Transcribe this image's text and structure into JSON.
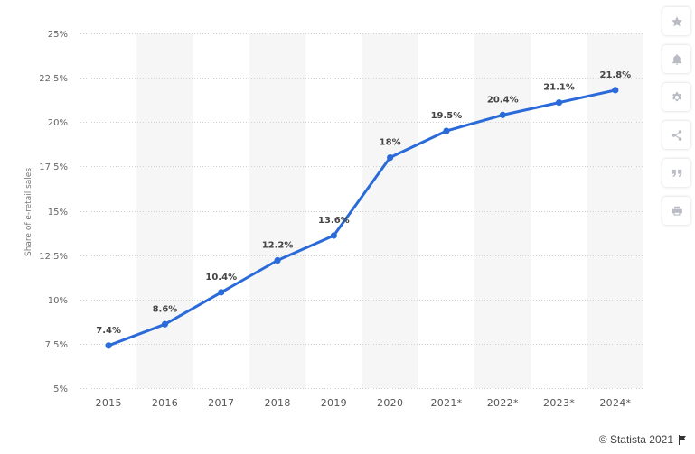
{
  "chart_data": {
    "type": "line",
    "title": "",
    "xlabel": "",
    "ylabel": "Share of e-retail sales",
    "categories": [
      "2015",
      "2016",
      "2017",
      "2018",
      "2019",
      "2020",
      "2021*",
      "2022*",
      "2023*",
      "2024*"
    ],
    "values": [
      7.4,
      8.6,
      10.4,
      12.2,
      13.6,
      18,
      19.5,
      20.4,
      21.1,
      21.8
    ],
    "data_labels": [
      "7.4%",
      "8.6%",
      "10.4%",
      "12.2%",
      "13.6%",
      "18%",
      "19.5%",
      "20.4%",
      "21.1%",
      "21.8%"
    ],
    "ylim": [
      5,
      25
    ],
    "y_ticks": [
      5,
      7.5,
      10,
      12.5,
      15,
      17.5,
      20,
      22.5,
      25
    ],
    "y_tick_labels": [
      "5%",
      "7.5%",
      "10%",
      "12.5%",
      "15%",
      "17.5%",
      "20%",
      "22.5%",
      "25%"
    ],
    "grid": true,
    "alternating_bands": true,
    "line_color": "#2a6ad9",
    "band_color": "#f6f6f6",
    "grid_color": "#d0d0d0"
  },
  "toolbar": {
    "buttons": [
      {
        "name": "star-icon"
      },
      {
        "name": "bell-icon"
      },
      {
        "name": "gear-icon"
      },
      {
        "name": "share-icon"
      },
      {
        "name": "quote-icon"
      },
      {
        "name": "print-icon"
      }
    ]
  },
  "credit": {
    "text": "© Statista 2021"
  }
}
